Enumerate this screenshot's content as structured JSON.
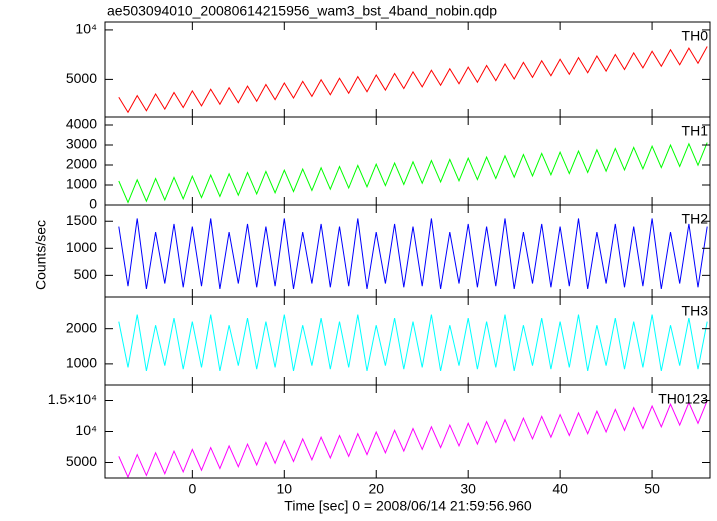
{
  "chart_data": {
    "type": "line",
    "title": "ae503094010_20080614215956_wam3_bst_4band_nobin.qdp",
    "xlabel": "Time [sec] 0 = 2008/06/14 21:59:56.960",
    "ylabel": "Counts/sec",
    "xlim": [
      -9.5,
      56.3
    ],
    "xticks": [
      0,
      10,
      20,
      30,
      40,
      50
    ],
    "x": [
      -8,
      -7,
      -6,
      -5,
      -4,
      -3,
      -2,
      -1,
      0,
      1,
      2,
      3,
      4,
      5,
      6,
      7,
      8,
      9,
      10,
      11,
      12,
      13,
      14,
      15,
      16,
      17,
      18,
      19,
      20,
      21,
      22,
      23,
      24,
      25,
      26,
      27,
      28,
      29,
      30,
      31,
      32,
      33,
      34,
      35,
      36,
      37,
      38,
      39,
      40,
      41,
      42,
      43,
      44,
      45,
      46,
      47,
      48,
      49,
      50,
      51,
      52,
      53,
      54,
      55,
      56
    ],
    "series": [
      {
        "name": "TH0",
        "color": "#ff0000",
        "ylim": [
          1200,
          10800
        ],
        "yticks": [
          5000,
          {
            "value": 10000,
            "label": "10⁴"
          }
        ],
        "values": [
          3200,
          1680,
          3360,
          1840,
          3520,
          2000,
          3680,
          2160,
          3840,
          2320,
          4000,
          2480,
          4160,
          2640,
          4320,
          2800,
          4480,
          2960,
          4640,
          3120,
          4800,
          3280,
          4960,
          3440,
          5120,
          3600,
          5280,
          3760,
          5440,
          3920,
          5600,
          4080,
          5760,
          4240,
          5920,
          4400,
          6080,
          4560,
          6240,
          4720,
          6400,
          4880,
          6560,
          5040,
          6720,
          5200,
          6880,
          5360,
          7040,
          5520,
          7200,
          5680,
          7360,
          5840,
          7520,
          6000,
          7680,
          6160,
          7840,
          6320,
          8000,
          6480,
          8160,
          6640,
          8320
        ]
      },
      {
        "name": "TH1",
        "color": "#00ff00",
        "ylim": [
          0,
          4400
        ],
        "yticks": [
          0,
          1000,
          2000,
          3000,
          4000
        ],
        "values": [
          1200,
          130,
          1260,
          190,
          1320,
          250,
          1380,
          310,
          1440,
          370,
          1500,
          430,
          1560,
          490,
          1620,
          550,
          1680,
          610,
          1740,
          670,
          1800,
          730,
          1860,
          790,
          1920,
          850,
          1980,
          910,
          2040,
          970,
          2100,
          1030,
          2160,
          1090,
          2220,
          1150,
          2280,
          1210,
          2340,
          1270,
          2400,
          1330,
          2460,
          1390,
          2520,
          1450,
          2580,
          1510,
          2640,
          1570,
          2700,
          1630,
          2760,
          1690,
          2820,
          1750,
          2880,
          1810,
          2940,
          1870,
          3000,
          1930,
          3060,
          1990,
          3120
        ]
      },
      {
        "name": "TH2",
        "color": "#0000ff",
        "ylim": [
          100,
          1800
        ],
        "yticks": [
          500,
          1000,
          1500
        ],
        "values": [
          1400,
          300,
          1550,
          250,
          1300,
          350,
          1450,
          280,
          1400,
          300,
          1550,
          250,
          1300,
          350,
          1450,
          280,
          1400,
          300,
          1550,
          250,
          1300,
          350,
          1450,
          280,
          1400,
          300,
          1550,
          250,
          1300,
          350,
          1450,
          280,
          1400,
          300,
          1550,
          250,
          1300,
          350,
          1450,
          280,
          1400,
          300,
          1550,
          250,
          1300,
          350,
          1450,
          280,
          1400,
          300,
          1550,
          250,
          1300,
          350,
          1450,
          280,
          1400,
          300,
          1550,
          250,
          1300,
          350,
          1450,
          280,
          1400
        ]
      },
      {
        "name": "TH3",
        "color": "#00ffff",
        "ylim": [
          400,
          2900
        ],
        "yticks": [
          1000,
          2000
        ],
        "values": [
          2200,
          900,
          2400,
          800,
          2100,
          950,
          2300,
          850,
          2200,
          900,
          2400,
          800,
          2100,
          950,
          2300,
          850,
          2200,
          900,
          2400,
          800,
          2100,
          950,
          2300,
          850,
          2200,
          900,
          2400,
          800,
          2100,
          950,
          2300,
          850,
          2200,
          900,
          2400,
          800,
          2100,
          950,
          2300,
          850,
          2200,
          900,
          2400,
          800,
          2100,
          950,
          2300,
          850,
          2200,
          900,
          2400,
          800,
          2100,
          950,
          2300,
          850,
          2200,
          900,
          2400,
          800,
          2100,
          950,
          2300,
          850,
          2200
        ]
      },
      {
        "name": "TH0123",
        "color": "#ff00ff",
        "ylim": [
          2500,
          17500
        ],
        "yticks": [
          5000,
          {
            "value": 10000,
            "label": "10⁴"
          },
          {
            "value": 15000,
            "label": "1.5×10⁴"
          }
        ],
        "values": [
          6000,
          2640,
          6280,
          2920,
          6560,
          3200,
          6840,
          3480,
          7120,
          3760,
          7400,
          4040,
          7680,
          4320,
          7960,
          4600,
          8240,
          4880,
          8520,
          5160,
          8800,
          5440,
          9080,
          5720,
          9360,
          6000,
          9640,
          6280,
          9920,
          6560,
          10200,
          6840,
          10480,
          7120,
          10760,
          7400,
          11040,
          7680,
          11320,
          7960,
          11600,
          8240,
          11880,
          8520,
          12160,
          8800,
          12440,
          9080,
          12720,
          9360,
          13000,
          9640,
          13280,
          9920,
          13560,
          10200,
          13840,
          10480,
          14120,
          10760,
          14400,
          11040,
          14680,
          11320,
          14960
        ]
      }
    ]
  }
}
